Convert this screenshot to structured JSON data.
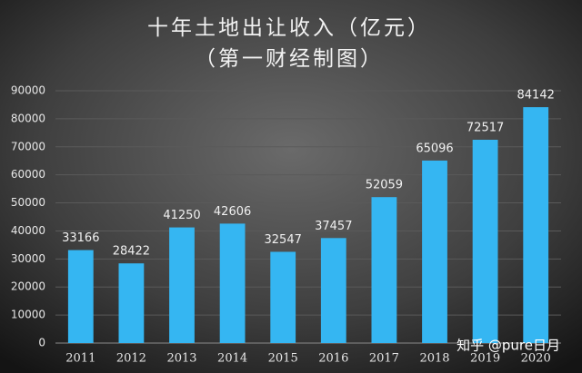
{
  "chart_data": {
    "type": "bar",
    "title": "十年土地出让收入（亿元）",
    "subtitle": "（第一财经制图）",
    "categories": [
      "2011",
      "2012",
      "2013",
      "2014",
      "2015",
      "2016",
      "2017",
      "2018",
      "2019",
      "2020"
    ],
    "values": [
      33166,
      28422,
      41250,
      42606,
      32547,
      37457,
      52059,
      65096,
      72517,
      84142
    ],
    "color": "#35b6f2",
    "ylim": [
      0,
      90000
    ],
    "yticks": [
      0,
      10000,
      20000,
      30000,
      40000,
      50000,
      60000,
      70000,
      80000,
      90000
    ],
    "grid": true,
    "watermark": "知乎 @pure日月"
  }
}
